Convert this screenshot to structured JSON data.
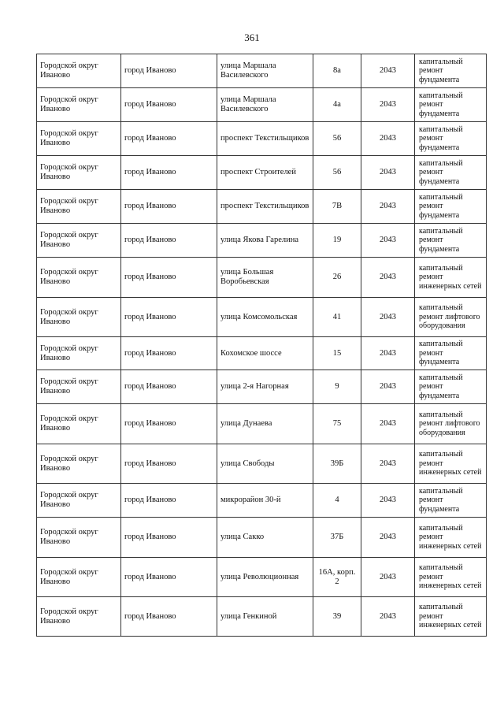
{
  "page_number": "361",
  "rows": [
    {
      "district": "Городской округ Иваново",
      "city": "город Иваново",
      "street": "улица Маршала Василевского",
      "house": "8а",
      "year": "2043",
      "work": "капитальный ремонт фундамента"
    },
    {
      "district": "Городской округ Иваново",
      "city": "город Иваново",
      "street": "улица Маршала Василевского",
      "house": "4а",
      "year": "2043",
      "work": "капитальный ремонт фундамента"
    },
    {
      "district": "Городской округ Иваново",
      "city": "город Иваново",
      "street": "проспект Текстильщиков",
      "house": "56",
      "year": "2043",
      "work": "капитальный ремонт фундамента"
    },
    {
      "district": "Городской округ Иваново",
      "city": "город Иваново",
      "street": "проспект Строителей",
      "house": "56",
      "year": "2043",
      "work": "капитальный ремонт фундамента"
    },
    {
      "district": "Городской округ Иваново",
      "city": "город Иваново",
      "street": "проспект Текстильщиков",
      "house": "7В",
      "year": "2043",
      "work": "капитальный ремонт фундамента"
    },
    {
      "district": "Городской округ Иваново",
      "city": "город Иваново",
      "street": "улица Якова Гарелина",
      "house": "19",
      "year": "2043",
      "work": "капитальный ремонт фундамента"
    },
    {
      "district": "Городской округ Иваново",
      "city": "город Иваново",
      "street": "улица Большая Воробьевская",
      "house": "26",
      "year": "2043",
      "work": "капитальный ремонт инженерных сетей"
    },
    {
      "district": "Городской округ Иваново",
      "city": "город Иваново",
      "street": "улица Комсомольская",
      "house": "41",
      "year": "2043",
      "work": "капитальный ремонт лифтового оборудования"
    },
    {
      "district": "Городской округ Иваново",
      "city": "город Иваново",
      "street": "Кохомское шоссе",
      "house": "15",
      "year": "2043",
      "work": "капитальный ремонт фундамента"
    },
    {
      "district": "Городской округ Иваново",
      "city": "город Иваново",
      "street": "улица 2-я Нагорная",
      "house": "9",
      "year": "2043",
      "work": "капитальный ремонт фундамента"
    },
    {
      "district": "Городской округ Иваново",
      "city": "город Иваново",
      "street": "улица Дунаева",
      "house": "75",
      "year": "2043",
      "work": "капитальный ремонт лифтового оборудования"
    },
    {
      "district": "Городской округ Иваново",
      "city": "город Иваново",
      "street": "улица Свободы",
      "house": "39Б",
      "year": "2043",
      "work": "капитальный ремонт инженерных сетей"
    },
    {
      "district": "Городской округ Иваново",
      "city": "город Иваново",
      "street": "микрорайон 30-й",
      "house": "4",
      "year": "2043",
      "work": "капитальный ремонт фундамента"
    },
    {
      "district": "Городской округ Иваново",
      "city": "город Иваново",
      "street": "улица Сакко",
      "house": "37Б",
      "year": "2043",
      "work": "капитальный ремонт инженерных сетей"
    },
    {
      "district": "Городской округ Иваново",
      "city": "город Иваново",
      "street": "улица Революционная",
      "house": "16А, корп. 2",
      "year": "2043",
      "work": "капитальный ремонт инженерных сетей"
    },
    {
      "district": "Городской округ Иваново",
      "city": "город Иваново",
      "street": "улица Генкиной",
      "house": "39",
      "year": "2043",
      "work": "капитальный ремонт инженерных сетей"
    }
  ]
}
